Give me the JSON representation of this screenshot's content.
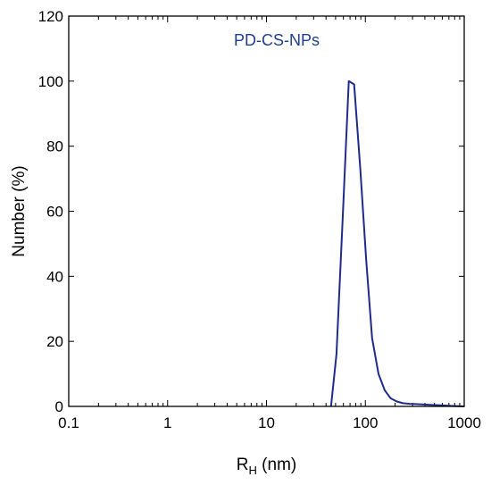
{
  "chart_data": {
    "type": "line",
    "title": "",
    "xlabel": "R",
    "xlabel_subscript": "H",
    "xlabel_unit": "(nm)",
    "ylabel": "Number (%)",
    "xscale": "log",
    "xlim": [
      0.1,
      1000
    ],
    "ylim": [
      0,
      120
    ],
    "x_ticks": [
      {
        "value": 0.1,
        "label": "0.1"
      },
      {
        "value": 1,
        "label": "1"
      },
      {
        "value": 10,
        "label": "10"
      },
      {
        "value": 100,
        "label": "100"
      },
      {
        "value": 1000,
        "label": "1000"
      }
    ],
    "y_ticks": [
      {
        "value": 0,
        "label": "0"
      },
      {
        "value": 20,
        "label": "20"
      },
      {
        "value": 40,
        "label": "40"
      },
      {
        "value": 60,
        "label": "60"
      },
      {
        "value": 80,
        "label": "80"
      },
      {
        "value": 100,
        "label": "100"
      },
      {
        "value": 120,
        "label": "120"
      }
    ],
    "grid": false,
    "series": [
      {
        "name": "PD-CS-NPs",
        "color": "#1f2a8c",
        "label_color": "#1f3f8f",
        "x": [
          45,
          51,
          59,
          68,
          77,
          89,
          102,
          117,
          136,
          157,
          180,
          208,
          240,
          280,
          340,
          450,
          600,
          800,
          1000
        ],
        "y": [
          0,
          16,
          58,
          100,
          99,
          73,
          45,
          21,
          10,
          5,
          2.5,
          1.5,
          1,
          0.8,
          0.7,
          0.5,
          0.3,
          0.1,
          0
        ]
      }
    ]
  }
}
